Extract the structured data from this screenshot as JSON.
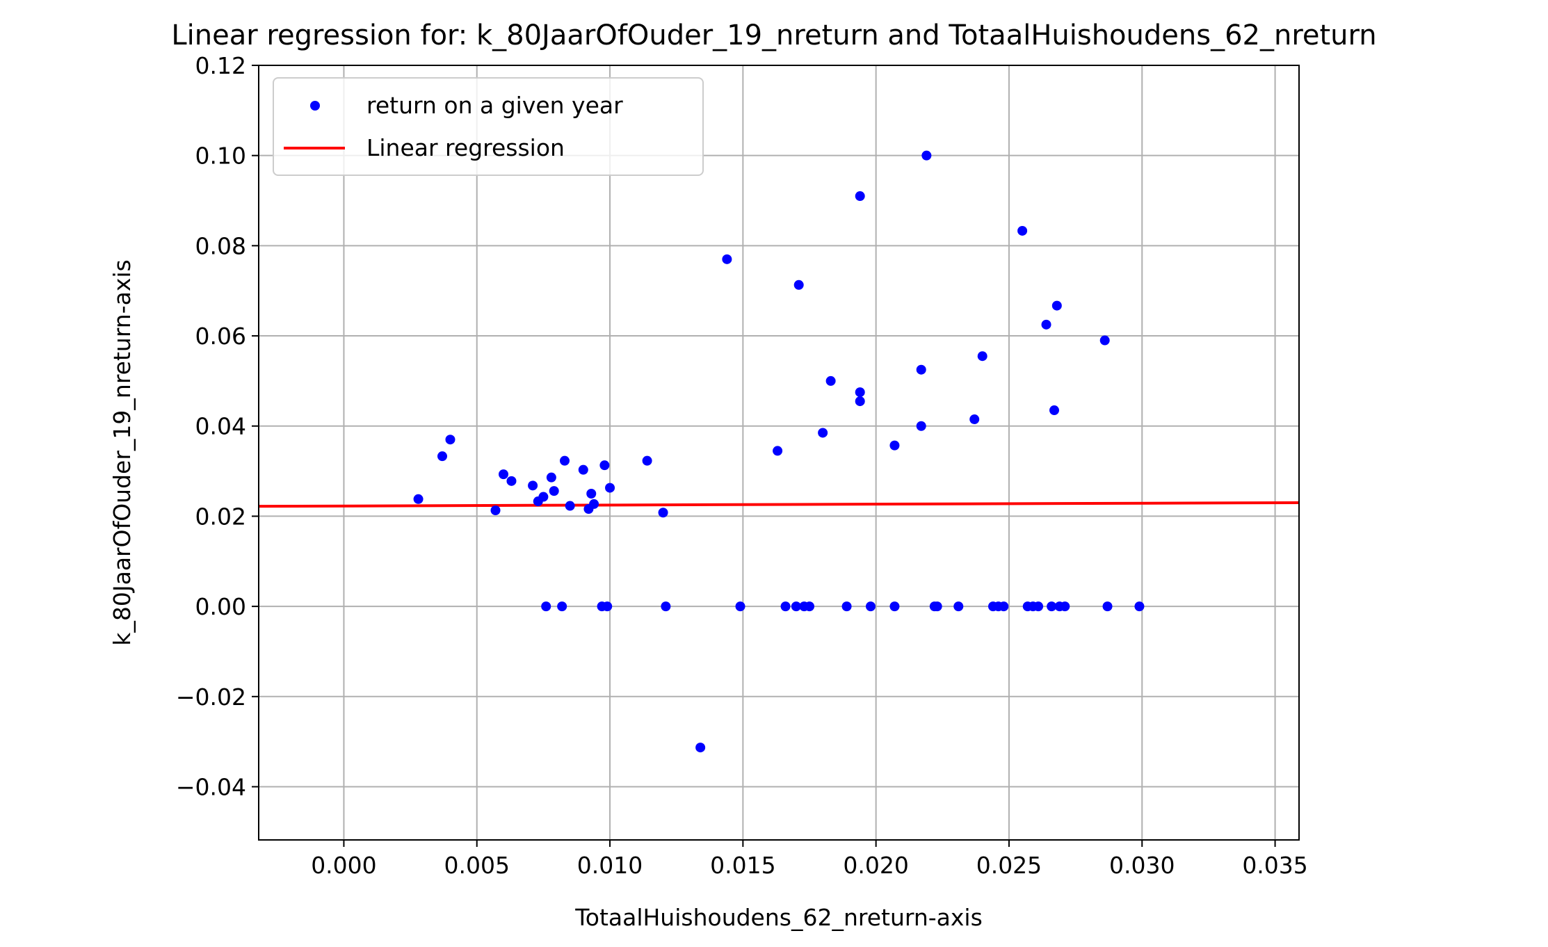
{
  "chart_data": {
    "type": "scatter",
    "title": "Linear regression for: k_80JaarOfOuder_19_nreturn and TotaalHuishoudens_62_nreturn",
    "xlabel": "TotaalHuishoudens_62_nreturn-axis",
    "ylabel": "k_80JaarOfOuder_19_nreturn-axis",
    "xlim": [
      -0.0032,
      0.0359
    ],
    "ylim": [
      -0.0518,
      0.12
    ],
    "x_ticks": [
      0.0,
      0.005,
      0.01,
      0.015,
      0.02,
      0.025,
      0.03,
      0.035
    ],
    "x_tick_labels": [
      "0.000",
      "0.005",
      "0.010",
      "0.015",
      "0.020",
      "0.025",
      "0.030",
      "0.035"
    ],
    "y_ticks": [
      -0.04,
      -0.02,
      0.0,
      0.02,
      0.04,
      0.06,
      0.08,
      0.1,
      0.12
    ],
    "y_tick_labels": [
      "−0.04",
      "−0.02",
      "0.00",
      "0.02",
      "0.04",
      "0.06",
      "0.08",
      "0.10",
      "0.12"
    ],
    "grid": true,
    "legend_position": "upper-left",
    "colors": {
      "points": "#0000ff",
      "line": "#ff0000",
      "grid": "#b0b0b0",
      "axes": "#000000"
    },
    "series": [
      {
        "name": "return on a given year",
        "kind": "scatter",
        "points": [
          [
            0.0028,
            0.0238
          ],
          [
            0.0037,
            0.0333
          ],
          [
            0.004,
            0.037
          ],
          [
            0.0057,
            0.0213
          ],
          [
            0.006,
            0.0293
          ],
          [
            0.0063,
            0.0278
          ],
          [
            0.0071,
            0.0268
          ],
          [
            0.0073,
            0.0233
          ],
          [
            0.0075,
            0.0243
          ],
          [
            0.0078,
            0.0286
          ],
          [
            0.0079,
            0.0256
          ],
          [
            0.0083,
            0.0323
          ],
          [
            0.0085,
            0.0223
          ],
          [
            0.009,
            0.0303
          ],
          [
            0.0092,
            0.0216
          ],
          [
            0.0093,
            0.025
          ],
          [
            0.0094,
            0.0227
          ],
          [
            0.0098,
            0.0313
          ],
          [
            0.01,
            0.0263
          ],
          [
            0.0114,
            0.0323
          ],
          [
            0.012,
            0.0208
          ],
          [
            0.0134,
            -0.0313
          ],
          [
            0.0144,
            0.077
          ],
          [
            0.0163,
            0.0345
          ],
          [
            0.0171,
            0.0713
          ],
          [
            0.018,
            0.0385
          ],
          [
            0.0183,
            0.05
          ],
          [
            0.0194,
            0.091
          ],
          [
            0.0194,
            0.0475
          ],
          [
            0.0194,
            0.0455
          ],
          [
            0.0207,
            0.0357
          ],
          [
            0.0217,
            0.04
          ],
          [
            0.0217,
            0.0525
          ],
          [
            0.0219,
            0.1
          ],
          [
            0.0237,
            0.0415
          ],
          [
            0.024,
            0.0555
          ],
          [
            0.0255,
            0.0833
          ],
          [
            0.0264,
            0.0625
          ],
          [
            0.0267,
            0.0435
          ],
          [
            0.0268,
            0.0667
          ],
          [
            0.0286,
            0.059
          ],
          [
            0.0076,
            0.0
          ],
          [
            0.0082,
            0.0
          ],
          [
            0.0097,
            0.0
          ],
          [
            0.0099,
            0.0
          ],
          [
            0.0121,
            0.0
          ],
          [
            0.0149,
            0.0
          ],
          [
            0.0166,
            0.0
          ],
          [
            0.017,
            0.0
          ],
          [
            0.0173,
            0.0
          ],
          [
            0.0175,
            0.0
          ],
          [
            0.0189,
            0.0
          ],
          [
            0.0198,
            0.0
          ],
          [
            0.0207,
            0.0
          ],
          [
            0.0222,
            0.0
          ],
          [
            0.0223,
            0.0
          ],
          [
            0.0231,
            0.0
          ],
          [
            0.0244,
            0.0
          ],
          [
            0.0246,
            0.0
          ],
          [
            0.0248,
            0.0
          ],
          [
            0.0257,
            0.0
          ],
          [
            0.0259,
            0.0
          ],
          [
            0.0261,
            0.0
          ],
          [
            0.0266,
            0.0
          ],
          [
            0.0269,
            0.0
          ],
          [
            0.0271,
            0.0
          ],
          [
            0.0287,
            0.0
          ],
          [
            0.0299,
            0.0
          ]
        ]
      },
      {
        "name": "Linear regression",
        "kind": "line",
        "points": [
          [
            -0.0032,
            0.0222
          ],
          [
            0.0359,
            0.023
          ]
        ]
      }
    ]
  }
}
